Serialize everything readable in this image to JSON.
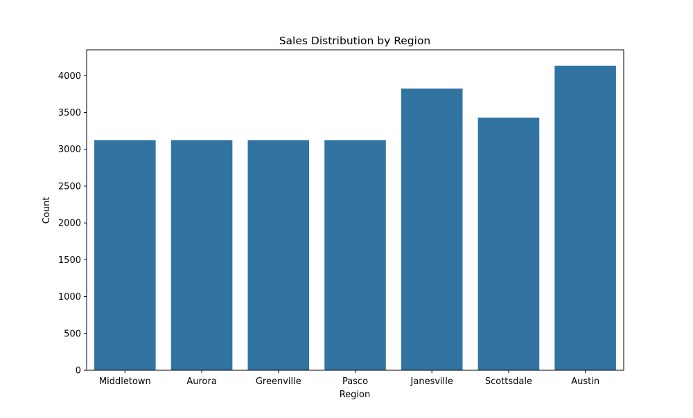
{
  "chart_data": {
    "type": "bar",
    "title": "Sales Distribution by Region",
    "xlabel": "Region",
    "ylabel": "Count",
    "categories": [
      "Middletown",
      "Aurora",
      "Greenville",
      "Pasco",
      "Janesville",
      "Scottsdale",
      "Austin"
    ],
    "values": [
      3125,
      3125,
      3125,
      3125,
      3825,
      3430,
      4135
    ],
    "ylim": [
      0,
      4350
    ],
    "yticks": [
      0,
      500,
      1000,
      1500,
      2000,
      2500,
      3000,
      3500,
      4000
    ],
    "grid": false,
    "legend": false,
    "colors": {
      "bar": "#3274a1",
      "axis": "#000000",
      "background": "#ffffff"
    }
  }
}
